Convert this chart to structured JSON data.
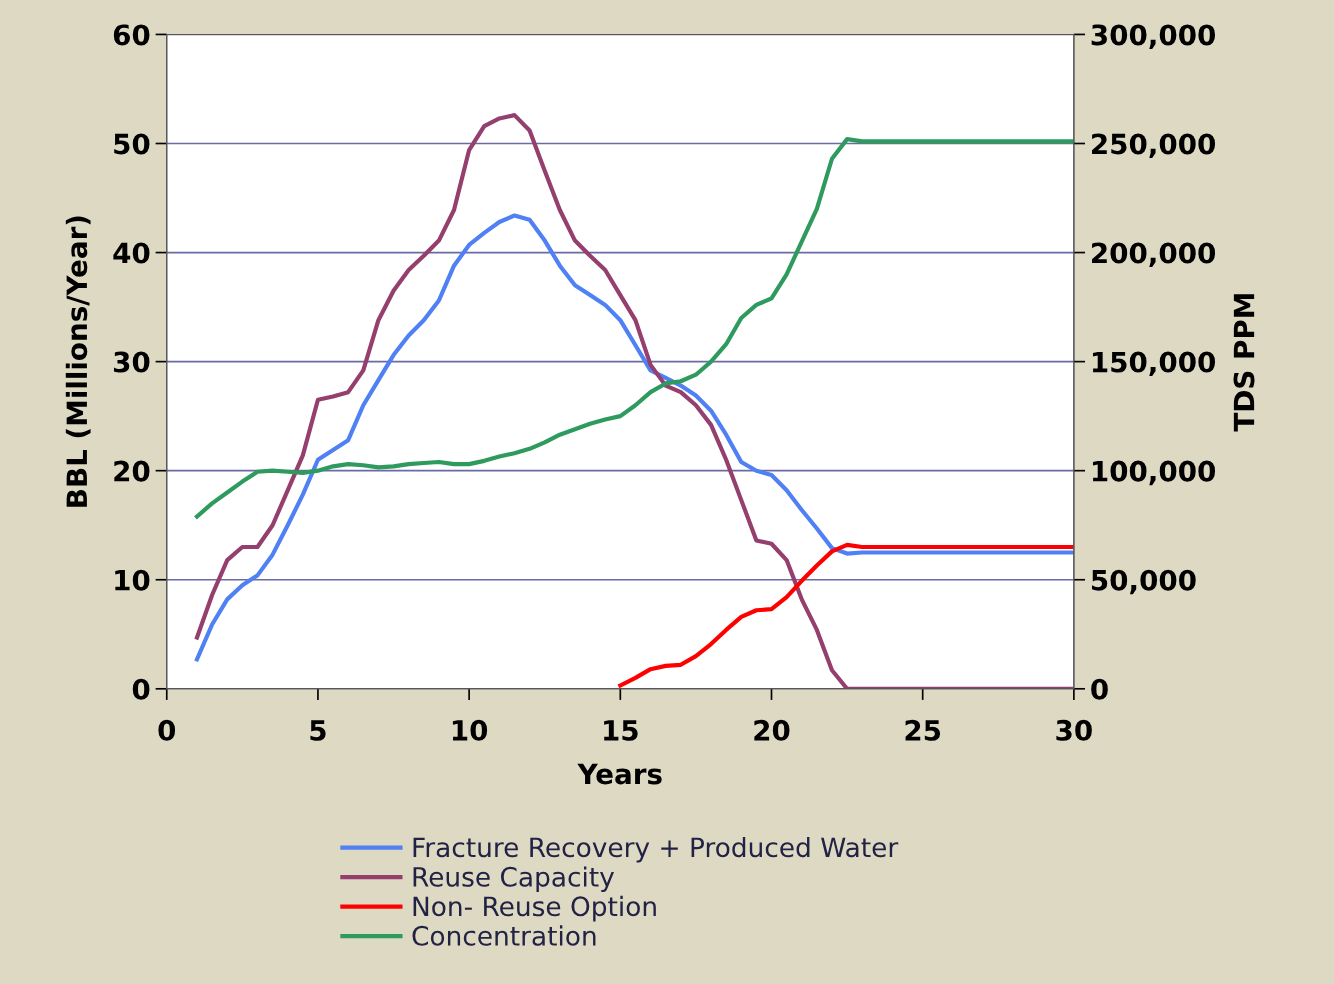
{
  "chart_data": {
    "type": "line",
    "xlabel": "Years",
    "ylabel": "BBL (Millions/Year)",
    "y2label": "TDS PPM",
    "xlim": [
      0,
      30
    ],
    "xticks": [
      0,
      5,
      10,
      15,
      20,
      25,
      30
    ],
    "ylim": [
      0,
      60
    ],
    "yticks": [
      0,
      10,
      20,
      30,
      40,
      50,
      60
    ],
    "y2lim": [
      0,
      300000
    ],
    "y2ticks": [
      {
        "value": 0,
        "label": "0"
      },
      {
        "value": 50000,
        "label": "50,000"
      },
      {
        "value": 100000,
        "label": "100,000"
      },
      {
        "value": 150000,
        "label": "150,000"
      },
      {
        "value": 200000,
        "label": "200,000"
      },
      {
        "value": 250000,
        "label": "250,000"
      },
      {
        "value": 300000,
        "label": "300,000"
      }
    ],
    "grid": "y",
    "legend": "bottom",
    "marker": "none",
    "line_style": "solid",
    "series": [
      {
        "name": "Fracture Recovery + Produced Water",
        "color": "#4f81f5",
        "x": [
          1,
          1.5,
          2,
          2.5,
          3,
          3.5,
          4,
          4.5,
          5,
          5.5,
          6,
          6.5,
          7,
          7.5,
          8,
          8.5,
          9,
          9.5,
          10,
          10.5,
          11,
          11.5,
          12,
          12.5,
          13,
          13.5,
          14,
          14.5,
          15,
          15.5,
          16,
          16.5,
          17,
          17.5,
          18,
          18.5,
          19,
          19.5,
          20,
          20.5,
          21,
          21.5,
          22,
          22.5,
          23,
          30
        ],
        "values": [
          2.7,
          5.9,
          8.2,
          9.5,
          10.4,
          12.3,
          15,
          17.8,
          21,
          21.9,
          22.8,
          26,
          28.3,
          30.6,
          32.4,
          33.8,
          35.6,
          38.8,
          40.7,
          41.8,
          42.8,
          43.4,
          43,
          41.1,
          38.8,
          37,
          36.1,
          35.2,
          33.8,
          31.5,
          29.2,
          28.5,
          27.8,
          26.9,
          25.5,
          23.3,
          20.8,
          20,
          19.6,
          18.2,
          16.4,
          14.7,
          12.9,
          12.4,
          12.5,
          12.5
        ]
      },
      {
        "name": "Reuse Capacity",
        "color": "#943f6e",
        "x": [
          1,
          1.5,
          2,
          2.5,
          3,
          3.5,
          4,
          4.5,
          5,
          5.5,
          6,
          6.5,
          7,
          7.5,
          8,
          8.5,
          9,
          9.5,
          10,
          10.5,
          11,
          11.5,
          12,
          12.5,
          13,
          13.5,
          14,
          14.5,
          15,
          15.5,
          16,
          16.5,
          17,
          17.5,
          18,
          18.5,
          19,
          19.5,
          20,
          20.5,
          21,
          21.5,
          22,
          22.5,
          30
        ],
        "values": [
          4.7,
          8.6,
          11.8,
          13,
          13,
          15,
          18.2,
          21.4,
          26.5,
          26.8,
          27.2,
          29.2,
          33.8,
          36.5,
          38.4,
          39.7,
          41.1,
          43.9,
          49.4,
          51.6,
          52.3,
          52.6,
          51.2,
          47.5,
          43.9,
          41.1,
          39.7,
          38.4,
          36.1,
          33.8,
          29.7,
          27.8,
          27.2,
          26,
          24.2,
          21,
          17.3,
          13.6,
          13.3,
          11.8,
          8.2,
          5.4,
          1.7,
          0,
          0
        ]
      },
      {
        "name": "Non- Reuse Option",
        "color": "#ff0000",
        "x": [
          15,
          15.5,
          16,
          16.5,
          17,
          17.5,
          18,
          18.5,
          19,
          19.5,
          20,
          20.5,
          21,
          21.5,
          22,
          22.5,
          23,
          30
        ],
        "values": [
          0.3,
          1,
          1.8,
          2.1,
          2.2,
          3,
          4.1,
          5.4,
          6.6,
          7.2,
          7.3,
          8.4,
          9.9,
          11.3,
          12.6,
          13.2,
          13,
          13
        ]
      },
      {
        "name": "Concentration",
        "color": "#2e9a5e",
        "axis": "y2",
        "x": [
          1,
          1.5,
          2,
          2.5,
          3,
          3.5,
          4,
          4.5,
          5,
          5.5,
          6,
          6.5,
          7,
          7.5,
          8,
          8.5,
          9,
          9.5,
          10,
          10.5,
          11,
          11.5,
          12,
          12.5,
          13,
          13.5,
          14,
          14.5,
          15,
          15.5,
          16,
          16.5,
          17,
          17.5,
          18,
          18.5,
          19,
          19.5,
          20,
          20.5,
          21,
          21.5,
          22,
          22.5,
          23,
          30
        ],
        "values": [
          79000,
          85000,
          90000,
          95000,
          99500,
          100000,
          99500,
          99000,
          100000,
          102000,
          103000,
          102500,
          101500,
          102000,
          103000,
          103500,
          104000,
          103000,
          103000,
          104500,
          106500,
          108000,
          110000,
          113000,
          116500,
          119000,
          121500,
          123500,
          125000,
          130000,
          136000,
          140000,
          141000,
          144000,
          150000,
          158000,
          170000,
          176000,
          179000,
          190000,
          205000,
          220000,
          243000,
          252000,
          251000,
          251000
        ]
      }
    ]
  }
}
